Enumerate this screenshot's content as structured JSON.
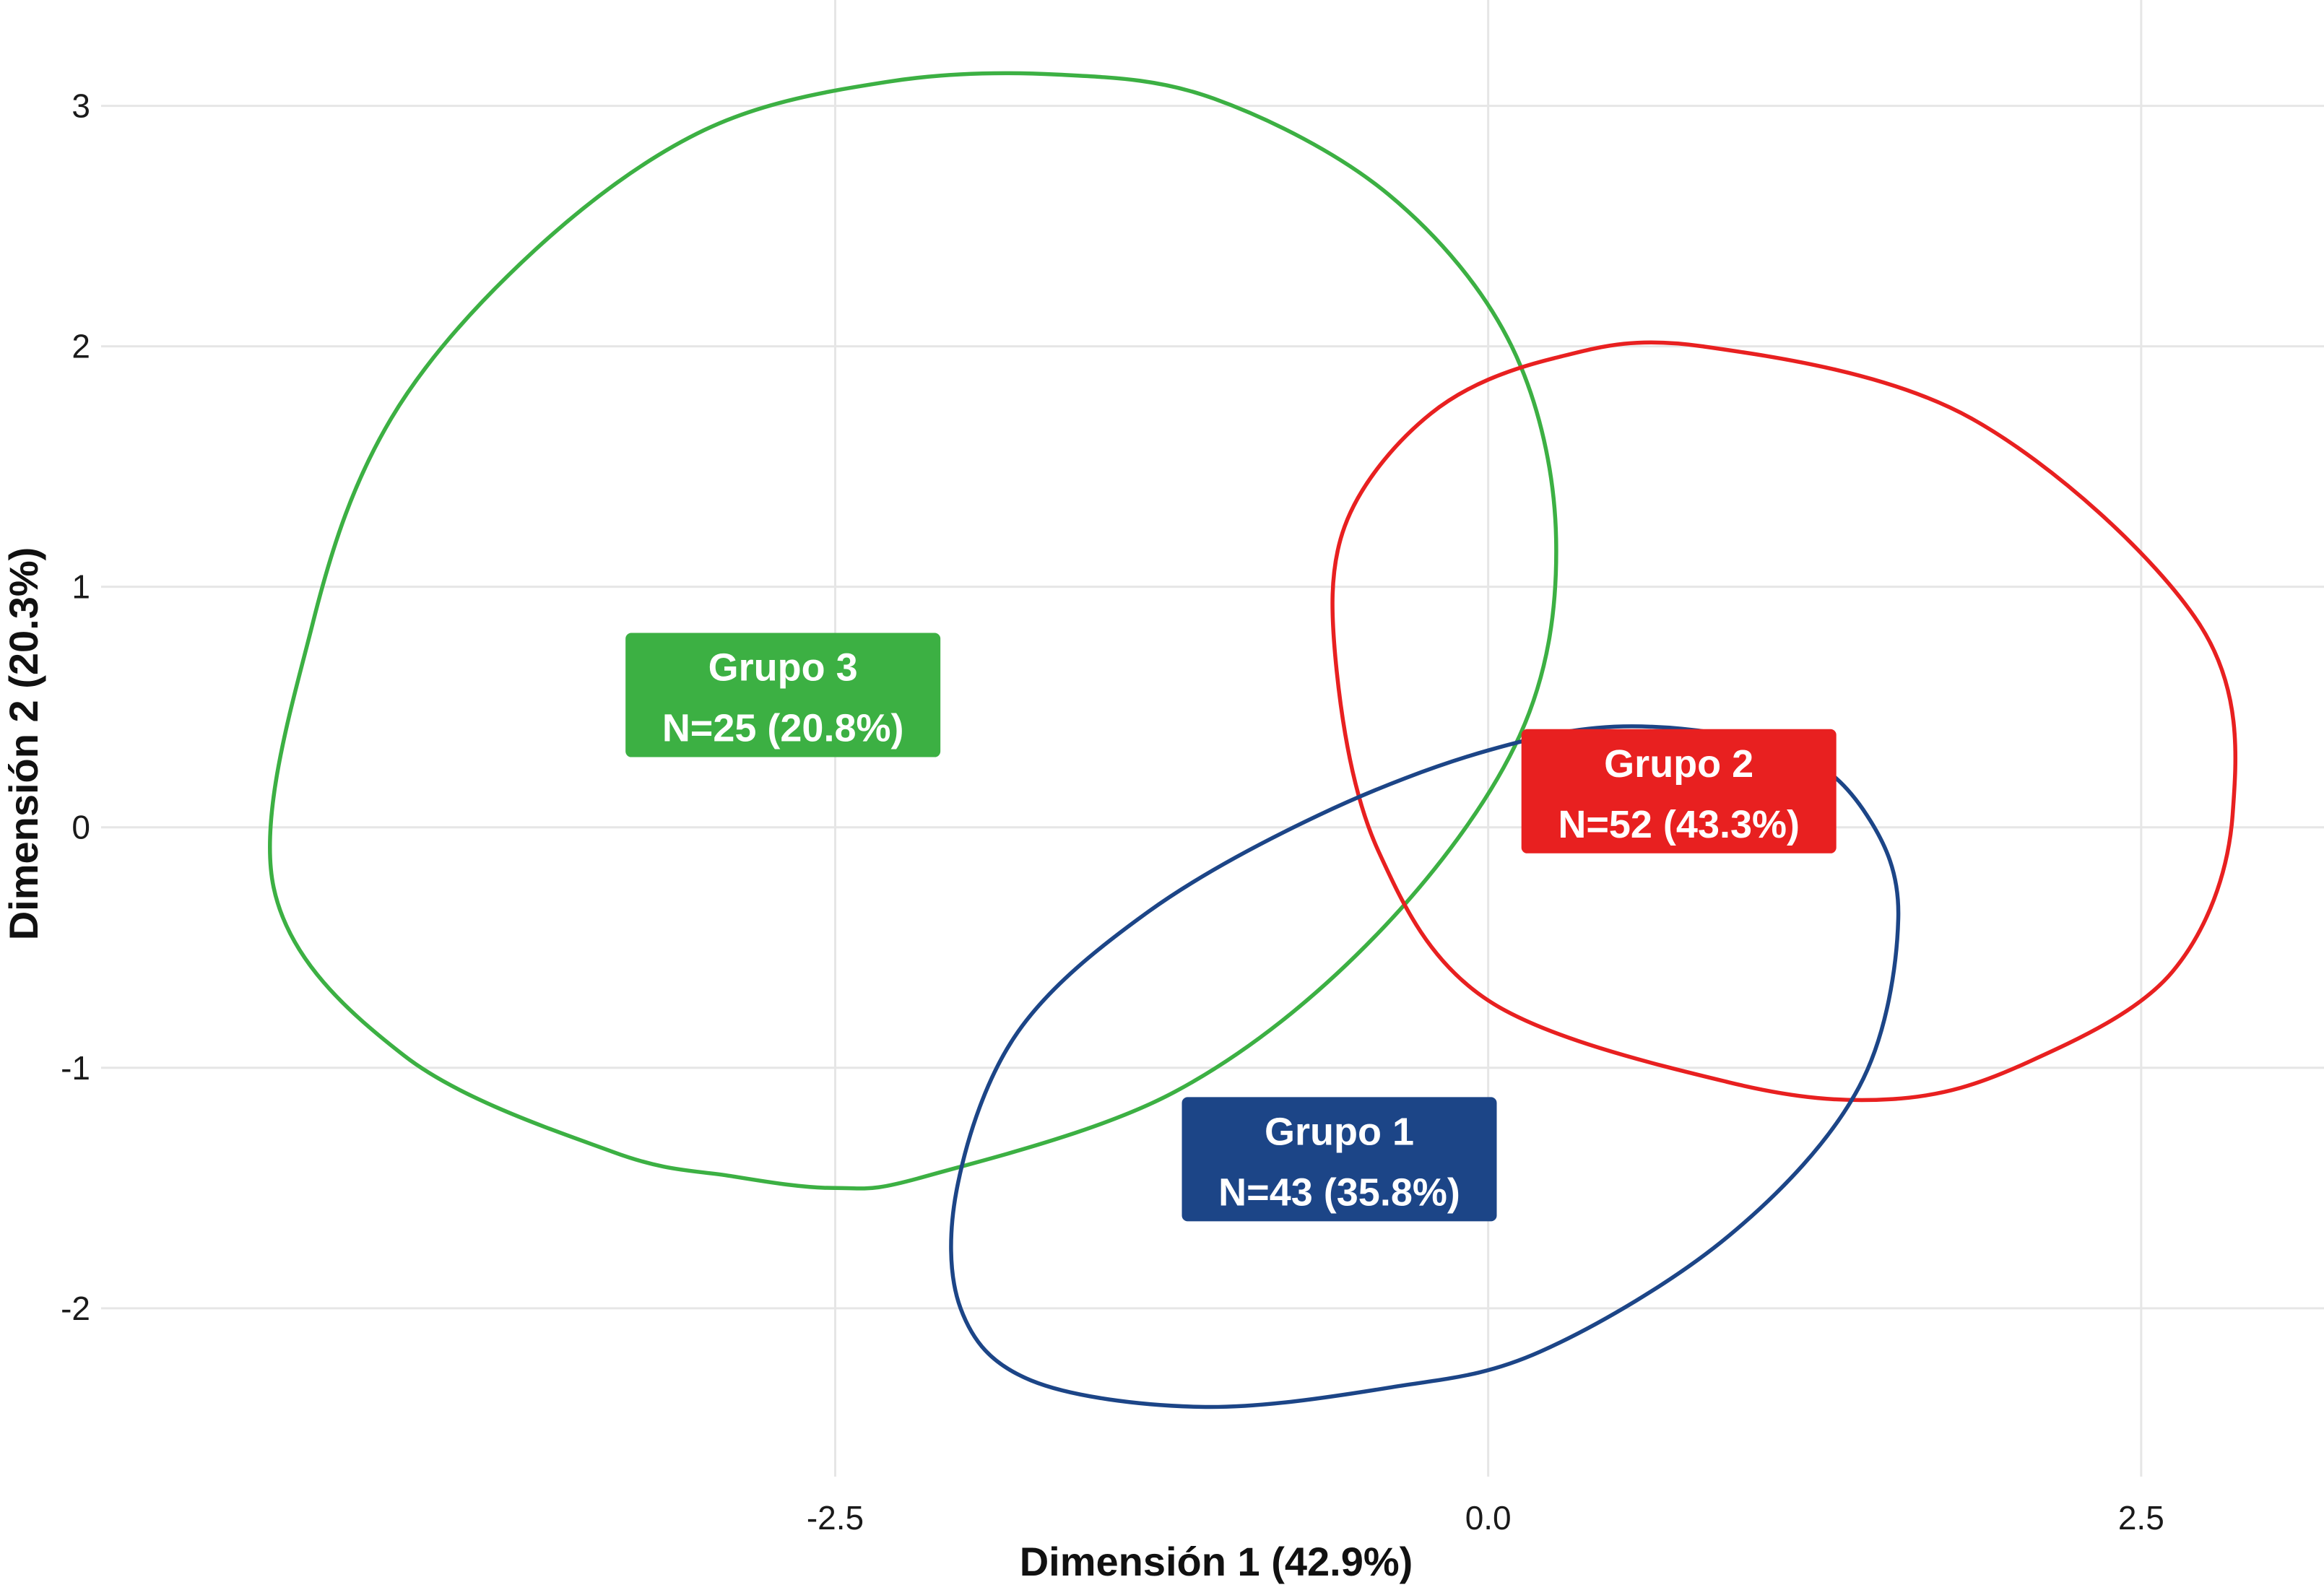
{
  "chart_data": {
    "type": "scatter",
    "xlabel": "Dimensión 1 (42.9%)",
    "ylabel": "Dimensión 2 (20.3%)",
    "xlim": [
      -5.2,
      3.2
    ],
    "ylim": [
      -2.7,
      3.35
    ],
    "x_ticks": [
      {
        "value": -2.5,
        "label": "-2.5"
      },
      {
        "value": 0.0,
        "label": "0.0"
      },
      {
        "value": 2.5,
        "label": "2.5"
      }
    ],
    "y_ticks": [
      {
        "value": -2,
        "label": "-2"
      },
      {
        "value": -1,
        "label": "-1"
      },
      {
        "value": 0,
        "label": "0"
      },
      {
        "value": 1,
        "label": "1"
      },
      {
        "value": 2,
        "label": "2"
      },
      {
        "value": 3,
        "label": "3"
      }
    ],
    "grid": true,
    "legend": "none",
    "groups": [
      {
        "name": "Grupo 3",
        "count_label": "N=25 (20.8%)",
        "color": "#3cb043",
        "ellipse_points": [
          [
            -1.65,
            3.13
          ],
          [
            -1.05,
            3.03
          ],
          [
            -0.38,
            2.63
          ],
          [
            0.09,
            2.0
          ],
          [
            0.26,
            1.2
          ],
          [
            0.12,
            0.38
          ],
          [
            -0.43,
            -0.45
          ],
          [
            -1.2,
            -1.1
          ],
          [
            -2.15,
            -1.45
          ],
          [
            -2.5,
            -1.5
          ],
          [
            -2.9,
            -1.45
          ],
          [
            -3.35,
            -1.35
          ],
          [
            -4.15,
            -0.95
          ],
          [
            -4.65,
            -0.25
          ],
          [
            -4.5,
            0.85
          ],
          [
            -4.2,
            1.7
          ],
          [
            -3.65,
            2.4
          ],
          [
            -3.0,
            2.9
          ],
          [
            -2.3,
            3.1
          ],
          [
            -1.65,
            3.13
          ]
        ],
        "label_at": [
          -2.7,
          0.55
        ]
      },
      {
        "name": "Grupo 2",
        "count_label": "N=52 (43.3%)",
        "color": "#e82020",
        "ellipse_points": [
          [
            0.82,
            2.0
          ],
          [
            1.85,
            1.7
          ],
          [
            2.72,
            0.85
          ],
          [
            2.85,
            0.05
          ],
          [
            2.62,
            -0.6
          ],
          [
            2.06,
            -0.98
          ],
          [
            1.55,
            -1.13
          ],
          [
            0.92,
            -1.06
          ],
          [
            0.0,
            -0.72
          ],
          [
            -0.42,
            -0.1
          ],
          [
            -0.58,
            0.65
          ],
          [
            -0.55,
            1.25
          ],
          [
            -0.22,
            1.72
          ],
          [
            0.25,
            1.95
          ],
          [
            0.82,
            2.0
          ]
        ],
        "label_at": [
          0.73,
          0.15
        ]
      },
      {
        "name": "Grupo 1",
        "count_label": "N=43 (35.8%)",
        "color": "#1c4587",
        "ellipse_points": [
          [
            0.55,
            0.42
          ],
          [
            1.15,
            0.32
          ],
          [
            1.45,
            0.05
          ],
          [
            1.57,
            -0.38
          ],
          [
            1.42,
            -1.08
          ],
          [
            0.92,
            -1.7
          ],
          [
            0.2,
            -2.18
          ],
          [
            -0.38,
            -2.33
          ],
          [
            -1.1,
            -2.41
          ],
          [
            -1.75,
            -2.3
          ],
          [
            -2.02,
            -2.0
          ],
          [
            -2.03,
            -1.48
          ],
          [
            -1.8,
            -0.85
          ],
          [
            -1.3,
            -0.35
          ],
          [
            -0.65,
            0.05
          ],
          [
            0.0,
            0.32
          ],
          [
            0.55,
            0.42
          ]
        ],
        "label_at": [
          -0.57,
          -1.38
        ]
      }
    ]
  }
}
